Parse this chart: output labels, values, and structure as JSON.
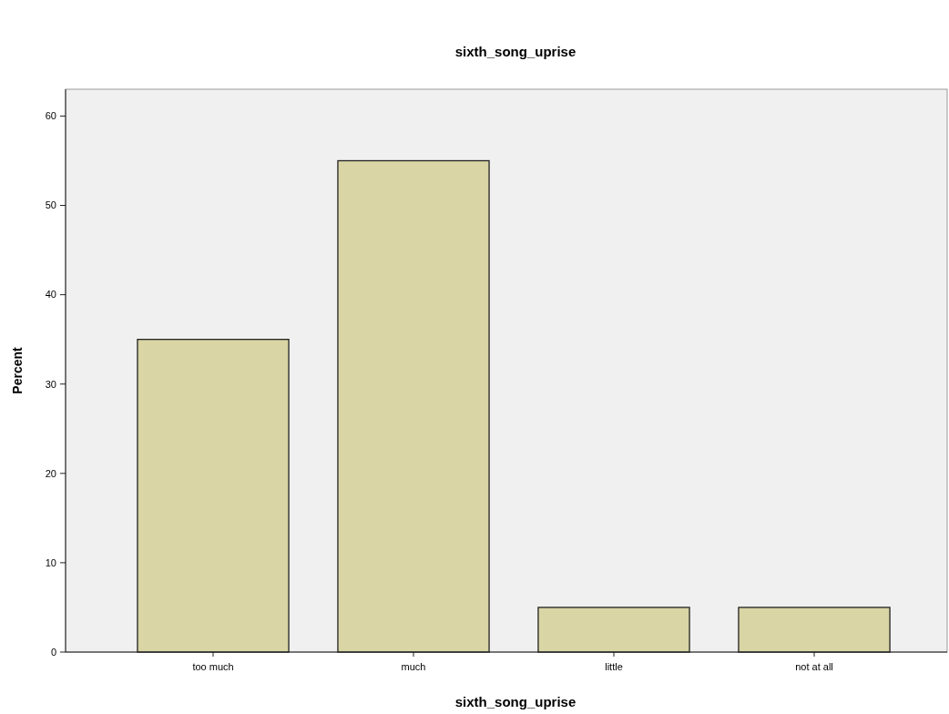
{
  "chart_data": {
    "type": "bar",
    "title": "sixth_song_uprise",
    "xlabel": "sixth_song_uprise",
    "ylabel": "Percent",
    "categories": [
      "too much",
      "much",
      "little",
      "not at all"
    ],
    "values": [
      35,
      55,
      5,
      5
    ],
    "color": "#d9d5a5",
    "ylim": [
      0,
      63
    ],
    "yticks": [
      0,
      10,
      20,
      30,
      40,
      50,
      60
    ],
    "grid": false
  }
}
